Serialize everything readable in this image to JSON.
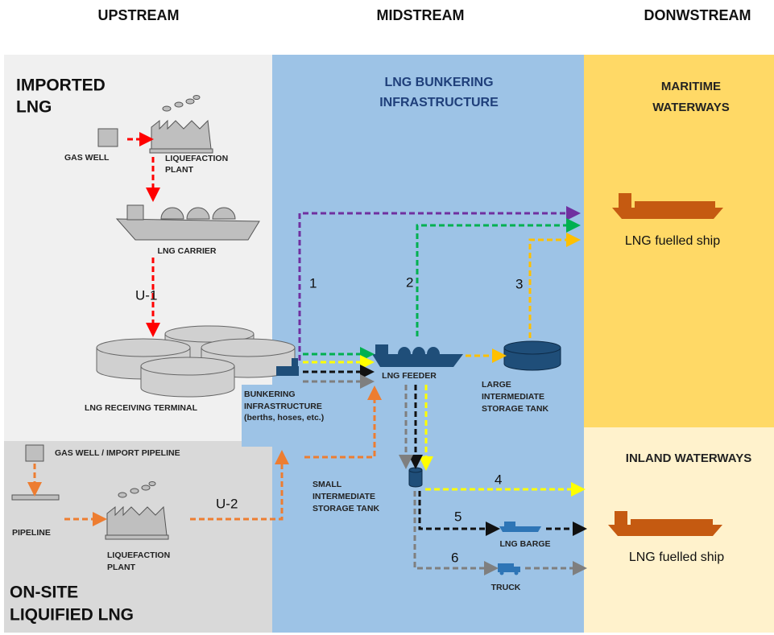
{
  "header": {
    "columns": [
      "UPSTREAM",
      "MIDSTREAM",
      "DONWSTREAM"
    ]
  },
  "regions": {
    "imported_lng": [
      "IMPORTED",
      "LNG"
    ],
    "bunkering": [
      "LNG BUNKERING",
      "INFRASTRUCTURE"
    ],
    "maritime": [
      "MARITIME",
      "WATERWAYS"
    ],
    "inland": [
      "INLAND WATERWAYS"
    ],
    "onsite_lng": [
      "ON-SITE",
      "LIQUIFIED LNG"
    ]
  },
  "nodes": {
    "gas_well": [
      "GAS WELL"
    ],
    "liquefaction_plant_1": [
      "LIQUEFACTION",
      "PLANT"
    ],
    "lng_carrier": [
      "LNG CARRIER"
    ],
    "receiving_terminal": [
      "LNG RECEIVING TERMINAL"
    ],
    "bunkering_infrastructure": [
      "BUNKERING",
      "INFRASTRUCTURE",
      "(berths, hoses, etc.)"
    ],
    "lng_feeder": [
      "LNG FEEDER"
    ],
    "large_tank": [
      "LARGE",
      "INTERMEDIATE",
      "STORAGE TANK"
    ],
    "maritime_ship": [
      "LNG fuelled ship"
    ],
    "gas_well_pipeline": [
      "GAS WELL / IMPORT PIPELINE"
    ],
    "pipeline": [
      "PIPELINE"
    ],
    "liquefaction_plant_2": [
      "LIQUEFACTION",
      "PLANT"
    ],
    "small_tank": [
      "SMALL",
      "INTERMEDIATE",
      "STORAGE TANK"
    ],
    "lng_barge": [
      "LNG BARGE"
    ],
    "truck": [
      "TRUCK"
    ],
    "inland_ship": [
      "LNG fuelled ship"
    ]
  },
  "routes": {
    "u1": "U-1",
    "u2": "U-2",
    "r1": "1",
    "r2": "2",
    "r3": "3",
    "r4": "4",
    "r5": "5",
    "r6": "6"
  }
}
